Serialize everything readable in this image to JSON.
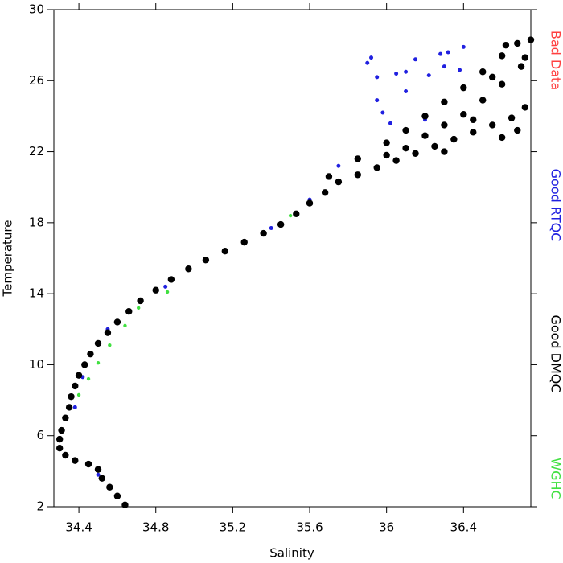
{
  "chart_data": {
    "type": "scatter",
    "x_label": "Salinity",
    "y_label": "Temperature",
    "xlim": [
      34.27,
      36.75
    ],
    "xticks": [
      34.4,
      34.8,
      35.2,
      35.6,
      36.0,
      36.4
    ],
    "ylim": [
      2,
      30
    ],
    "yticks": [
      2,
      6,
      10,
      14,
      18,
      22,
      26,
      30
    ],
    "series": [
      {
        "name": "Bad Data",
        "color": "#ff4040",
        "x": [],
        "values": []
      },
      {
        "name": "Good RTQC",
        "color": "#2020e0",
        "x": [
          35.9,
          35.92,
          35.95,
          36.05,
          36.1,
          36.22,
          36.15,
          36.28,
          36.32,
          36.3,
          36.4,
          36.38,
          35.95,
          35.98,
          36.02,
          35.75,
          35.6,
          35.4,
          34.85,
          34.55,
          34.42,
          34.38,
          34.5,
          36.1,
          36.2
        ],
        "values": [
          27,
          27.3,
          26.2,
          26.4,
          26.5,
          26.3,
          27.2,
          27.5,
          27.6,
          26.8,
          27.9,
          26.6,
          24.9,
          24.2,
          23.6,
          21.2,
          19.3,
          17.7,
          14.4,
          12,
          9.3,
          7.6,
          3.8,
          25.4,
          23.8
        ]
      },
      {
        "name": "Good DMQC",
        "color": "#000000",
        "x": [
          34.64,
          34.6,
          34.56,
          34.52,
          34.5,
          34.45,
          34.38,
          34.33,
          34.3,
          34.3,
          34.31,
          34.33,
          34.35,
          34.36,
          34.38,
          34.4,
          34.43,
          34.46,
          34.5,
          34.55,
          34.6,
          34.66,
          34.72,
          34.8,
          34.88,
          34.97,
          35.06,
          35.16,
          35.26,
          35.36,
          35.45,
          35.53,
          35.6,
          35.68,
          35.75,
          35.85,
          35.95,
          36.05,
          36.15,
          36.25,
          36.35,
          36.45,
          36.55,
          36.65,
          36.72,
          35.7,
          35.85,
          36.0,
          36.1,
          36.2,
          36.3,
          36.4,
          36.5,
          36.6,
          36.68,
          36.75,
          36.4,
          36.5,
          36.6,
          36.7,
          36.55,
          36.45,
          36.3,
          36.2,
          36.1,
          36.62,
          36.72,
          36.6,
          36.68,
          36.0,
          36.3
        ],
        "values": [
          2.1,
          2.6,
          3.1,
          3.6,
          4.1,
          4.4,
          4.6,
          4.9,
          5.3,
          5.8,
          6.3,
          7,
          7.6,
          8.2,
          8.8,
          9.4,
          10,
          10.6,
          11.2,
          11.8,
          12.4,
          13,
          13.6,
          14.2,
          14.8,
          15.4,
          15.9,
          16.4,
          16.9,
          17.4,
          17.9,
          18.5,
          19.1,
          19.7,
          20.3,
          20.7,
          21.1,
          21.5,
          21.9,
          22.3,
          22.7,
          23.1,
          23.5,
          23.9,
          24.5,
          20.6,
          21.6,
          22.5,
          23.2,
          24,
          24.8,
          25.6,
          26.5,
          27.4,
          28.1,
          28.3,
          24.1,
          24.9,
          25.8,
          26.8,
          26.2,
          23.8,
          23.5,
          22.9,
          22.2,
          28.0,
          27.3,
          22.8,
          23.2,
          21.8,
          22.0
        ]
      },
      {
        "name": "WGHC",
        "color": "#40e040",
        "x": [
          34.71,
          34.64,
          34.56,
          34.5,
          34.45,
          34.4,
          34.86,
          35.5
        ],
        "values": [
          13.2,
          12.2,
          11.1,
          10.1,
          9.2,
          8.3,
          14.1,
          18.4
        ]
      }
    ]
  }
}
